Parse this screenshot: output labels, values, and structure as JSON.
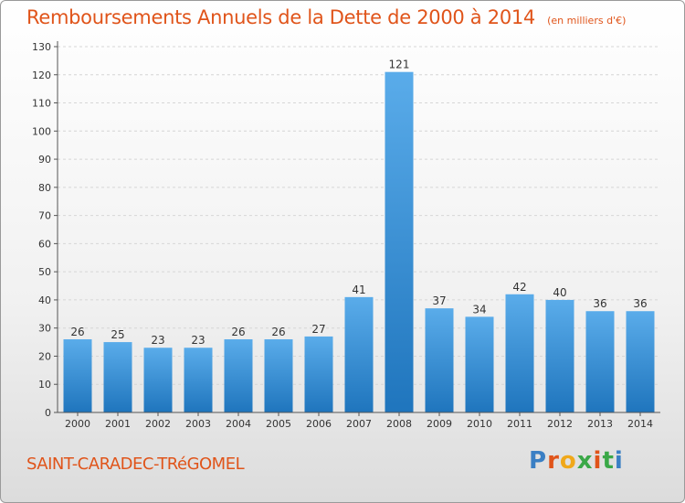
{
  "header": {
    "title": "Remboursements Annuels de la Dette de 2000 à 2014",
    "subtitle": "(en milliers d'€)"
  },
  "footer": {
    "commune": "SAINT-CARADEC-TRéGOMEL",
    "logo_text": "Proxiti"
  },
  "colors": {
    "bar_top": "#5aacea",
    "bar_bottom": "#1f75bd",
    "title": "#e0541a",
    "grid": "#d6d6d6"
  },
  "chart_data": {
    "type": "bar",
    "title": "Remboursements Annuels de la Dette de 2000 à 2014",
    "subtitle": "(en milliers d'€)",
    "xlabel": "",
    "ylabel": "",
    "categories": [
      "2000",
      "2001",
      "2002",
      "2003",
      "2004",
      "2005",
      "2006",
      "2007",
      "2008",
      "2009",
      "2010",
      "2011",
      "2012",
      "2013",
      "2014"
    ],
    "values": [
      26,
      25,
      23,
      23,
      26,
      26,
      27,
      41,
      121,
      37,
      34,
      42,
      40,
      36,
      36
    ],
    "ylim": [
      0,
      130
    ],
    "yticks": [
      0,
      10,
      20,
      30,
      40,
      50,
      60,
      70,
      80,
      90,
      100,
      110,
      120,
      130
    ],
    "grid": true,
    "legend": "none",
    "data_labels": true
  }
}
